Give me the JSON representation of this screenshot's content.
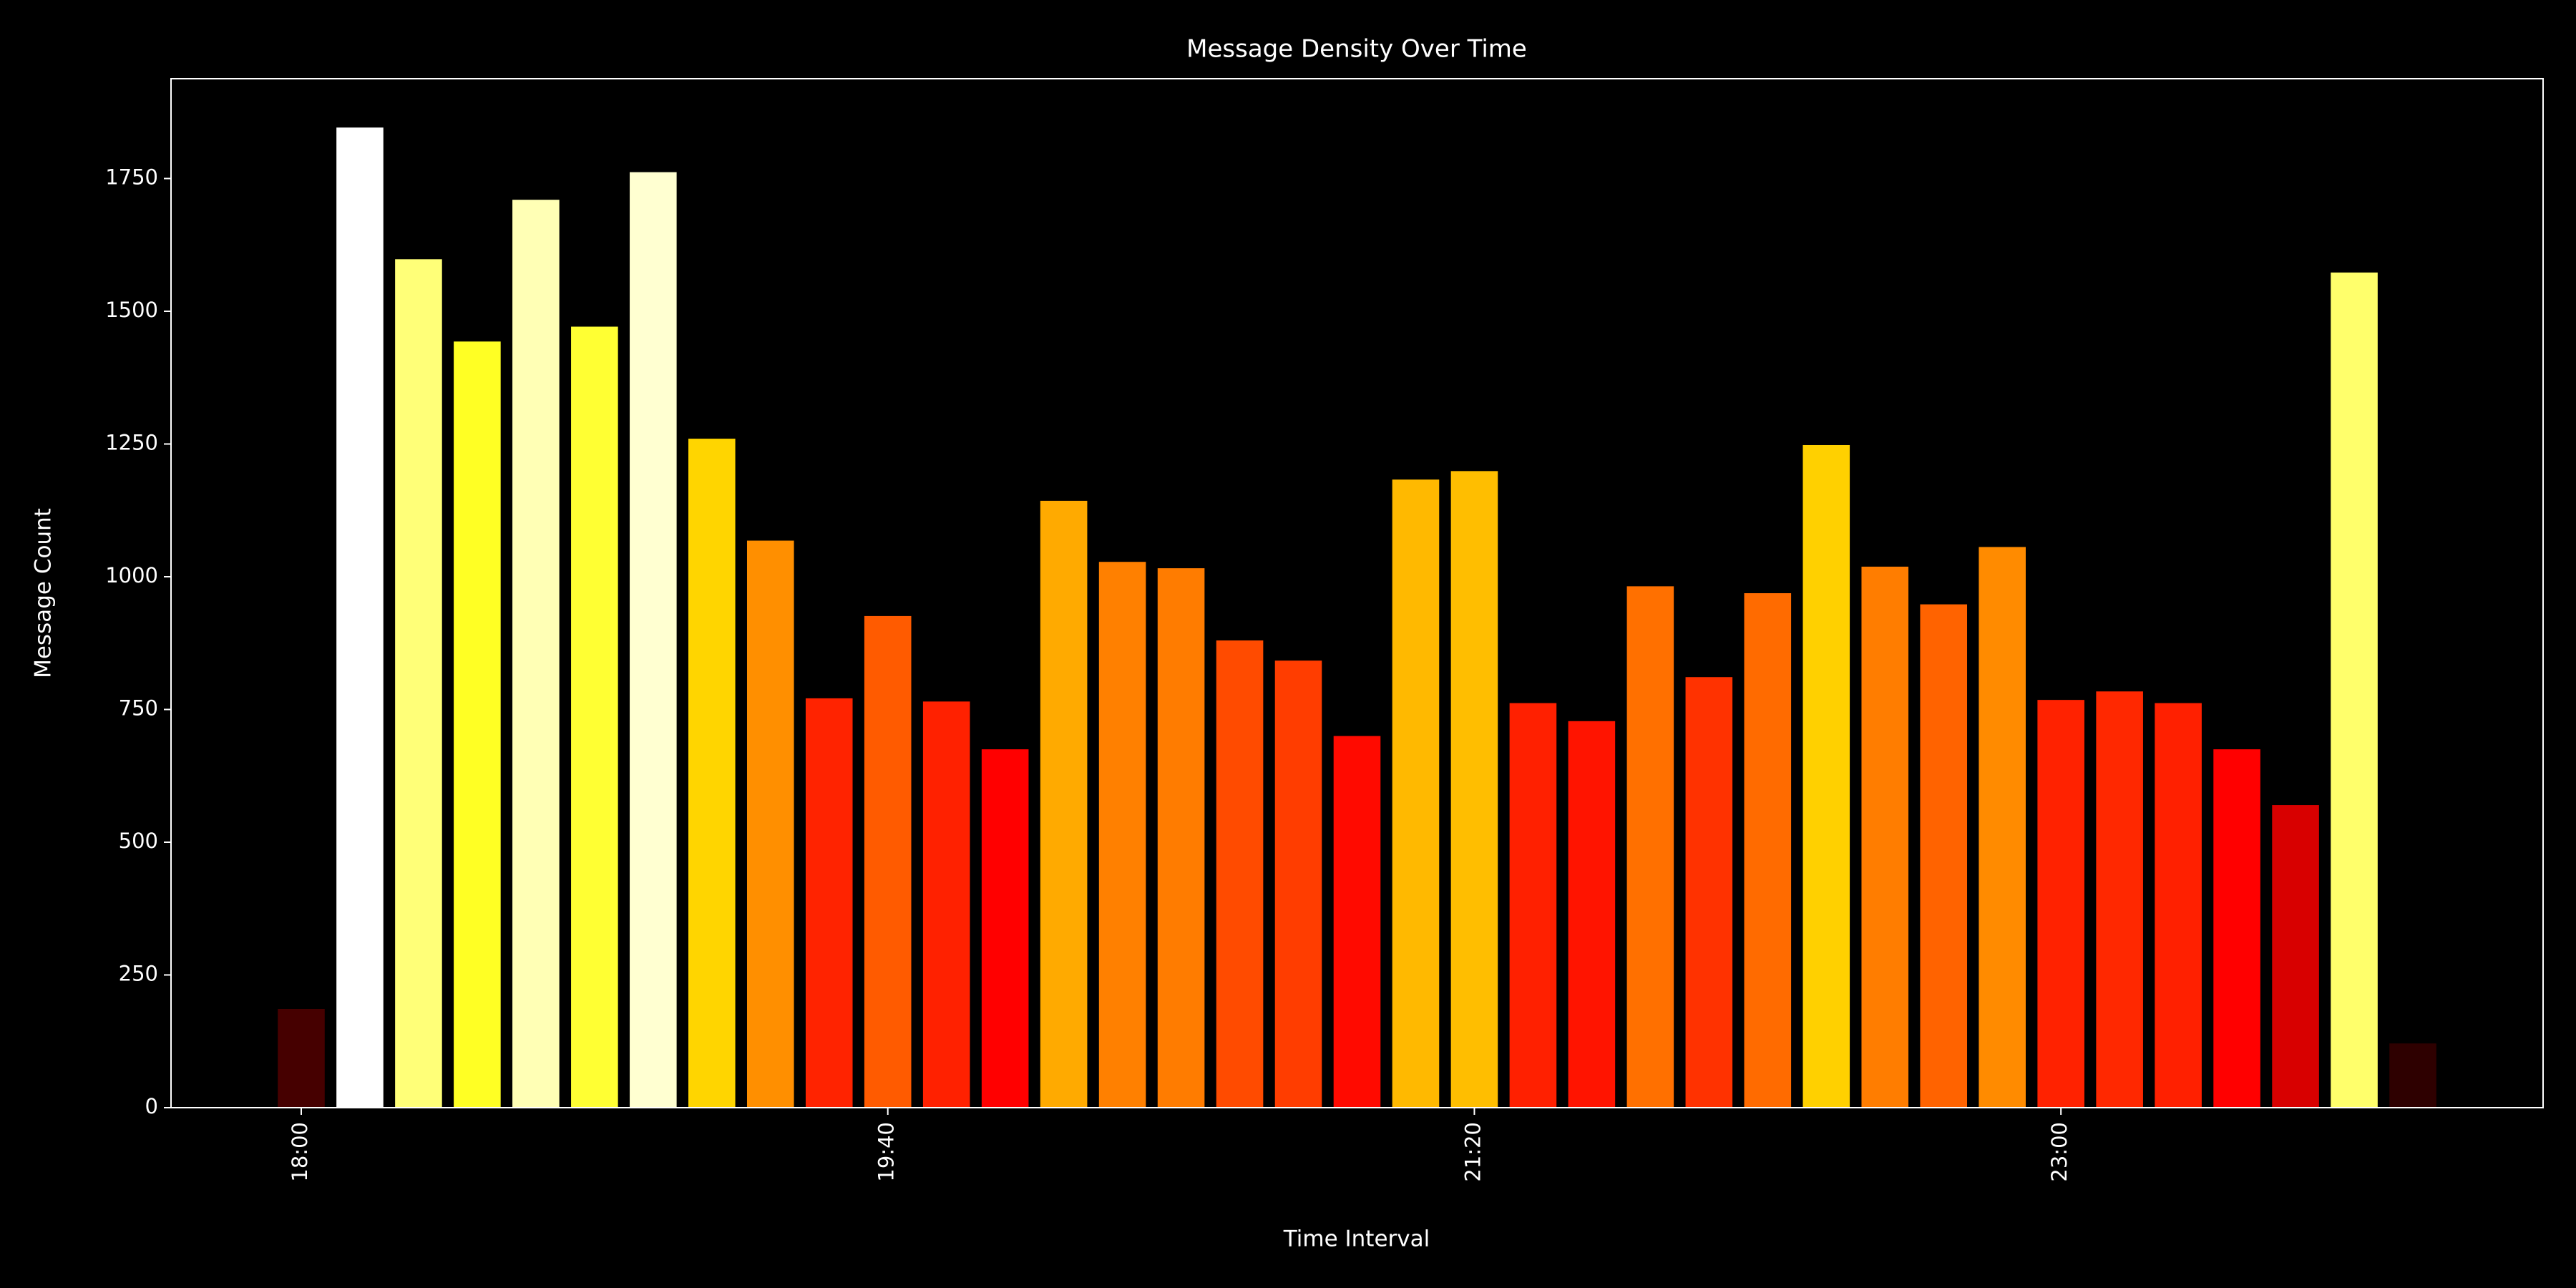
{
  "chart_data": {
    "type": "bar",
    "title": "Message Density Over Time",
    "x_label": "Time Interval",
    "y_label": "Message Count",
    "categories": [
      "18:00",
      null,
      null,
      null,
      null,
      null,
      null,
      null,
      null,
      null,
      "19:40",
      null,
      null,
      null,
      null,
      null,
      null,
      null,
      null,
      null,
      "21:20",
      null,
      null,
      null,
      null,
      null,
      null,
      null,
      null,
      null,
      "23:00",
      null,
      null,
      null,
      null,
      null,
      null
    ],
    "values": [
      186,
      1846,
      1598,
      1443,
      1710,
      1471,
      1762,
      1260,
      1068,
      771,
      926,
      765,
      675,
      1143,
      1028,
      1016,
      880,
      842,
      700,
      1183,
      1199,
      762,
      728,
      982,
      811,
      969,
      1248,
      1019,
      948,
      1056,
      768,
      784,
      762,
      675,
      570,
      1573,
      121
    ],
    "colormap": "hot",
    "ylim": [
      0,
      1938
    ],
    "yticks": [
      0,
      250,
      500,
      750,
      1000,
      1250,
      1500,
      1750
    ],
    "grid": false
  }
}
